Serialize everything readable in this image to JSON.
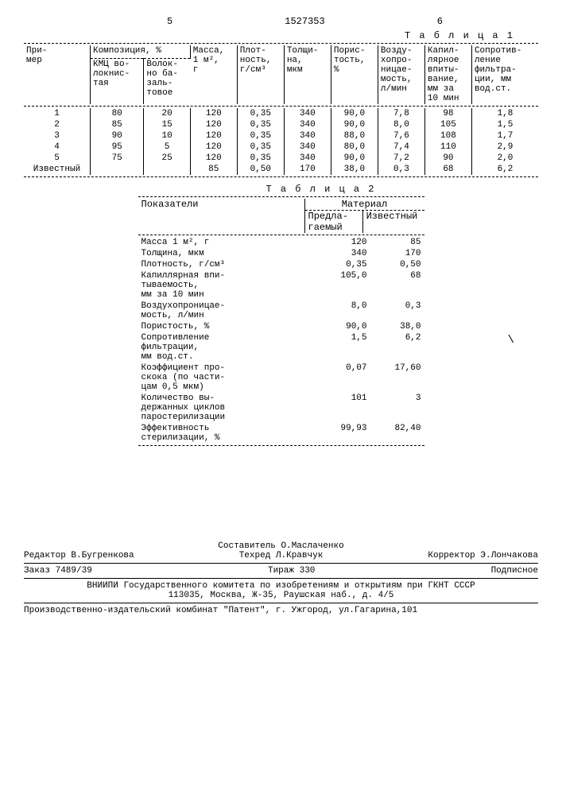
{
  "header": {
    "page_left": "5",
    "doc_number": "1527353",
    "page_right": "6"
  },
  "table1": {
    "caption": "Т а б л и ц а 1",
    "headers": {
      "c0": "При-\nмер",
      "c1a": "Композиция, %",
      "c1b": "КМЦ во-\nлокнис-\nтая",
      "c1c": "Волок-\nно ба-\nзаль-\nтовое",
      "c2": "Масса,\n1 м²,\nг",
      "c3": "Плот-\nность,\nг/см³",
      "c4": "Толщи-\nна,\nмкм",
      "c5": "Порис-\nтость,\n%",
      "c6": "Возду-\nхопро-\nницае-\nмость,\nл/мин",
      "c7": "Капил-\nлярное\nвпиты-\nвание,\nмм за\n10 мин",
      "c8": "Сопротив-\nление\nфильтра-\nции, мм\nвод.ст."
    },
    "rows": [
      {
        "n": "1",
        "a": "80",
        "b": "20",
        "m": "120",
        "d": "0,35",
        "t": "340",
        "p": "90,0",
        "v": "7,8",
        "k": "98",
        "s": "1,8"
      },
      {
        "n": "2",
        "a": "85",
        "b": "15",
        "m": "120",
        "d": "0,35",
        "t": "340",
        "p": "90,0",
        "v": "8,0",
        "k": "105",
        "s": "1,5"
      },
      {
        "n": "3",
        "a": "90",
        "b": "10",
        "m": "120",
        "d": "0,35",
        "t": "340",
        "p": "88,0",
        "v": "7,6",
        "k": "108",
        "s": "1,7"
      },
      {
        "n": "4",
        "a": "95",
        "b": "5",
        "m": "120",
        "d": "0,35",
        "t": "340",
        "p": "80,0",
        "v": "7,4",
        "k": "110",
        "s": "2,9"
      },
      {
        "n": "5",
        "a": "75",
        "b": "25",
        "m": "120",
        "d": "0,35",
        "t": "340",
        "p": "90,0",
        "v": "7,2",
        "k": "90",
        "s": "2,0"
      },
      {
        "n": "Известный",
        "a": "",
        "b": "",
        "m": "85",
        "d": "0,50",
        "t": "170",
        "p": "38,0",
        "v": "0,3",
        "k": "68",
        "s": "6,2"
      }
    ]
  },
  "table2": {
    "caption": "Т а б л и ц а 2",
    "h_left": "Показатели",
    "h_right": "Материал",
    "h_sub1": "Предла-\nгаемый",
    "h_sub2": "Известный",
    "rows": [
      {
        "label": "Масса 1 м², г",
        "v1": "120",
        "v2": "85"
      },
      {
        "label": "Толщина, мкм",
        "v1": "340",
        "v2": "170"
      },
      {
        "label": "Плотность, г/см³",
        "v1": "0,35",
        "v2": "0,50"
      },
      {
        "label": "Капиллярная впи-\nтываемость,\nмм за 10 мин",
        "v1": "105,0",
        "v2": "68"
      },
      {
        "label": "Воздухопроницае-\nмость, л/мин",
        "v1": "8,0",
        "v2": "0,3"
      },
      {
        "label": "Пористость, %",
        "v1": "90,0",
        "v2": "38,0"
      },
      {
        "label": "Сопротивление\nфильтрации,\nмм вод.ст.",
        "v1": "1,5",
        "v2": "6,2"
      },
      {
        "label": "Коэффициент про-\nскока (по части-\nцам 0,5 мкм)",
        "v1": "0,07",
        "v2": "17,60"
      },
      {
        "label": "Количество вы-\nдержанных циклов\nпаростерилизации",
        "v1": "101",
        "v2": "3"
      },
      {
        "label": "Эффективность\nстерилизации, %",
        "v1": "99,93",
        "v2": "82,40"
      }
    ]
  },
  "footer": {
    "compiler": "Составитель О.Маслаченко",
    "editor": "Редактор В.Бугренкова",
    "tech": "Техред Л.Кравчук",
    "corrector": "Корректор Э.Лончакова",
    "order": "Заказ 7489/39",
    "tirage": "Тираж 330",
    "sub": "Подписное",
    "org": "ВНИИПИ Государственного комитета по изобретениям и открытиям при ГКНТ СССР",
    "addr": "113035, Москва, Ж-35, Раушская наб., д. 4/5",
    "prod": "Производственно-издательский комбинат \"Патент\", г. Ужгород, ул.Гагарина,101"
  }
}
